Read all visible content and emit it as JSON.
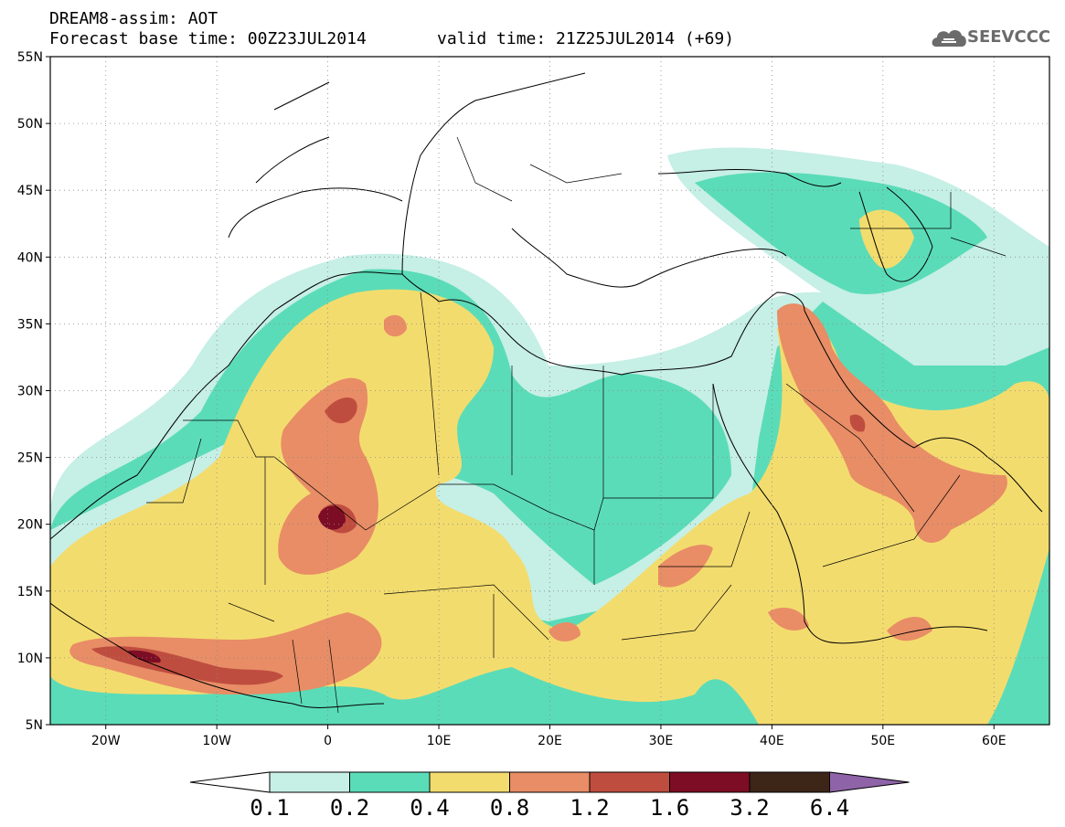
{
  "header": {
    "title_line1": "DREAM8-assim: AOT",
    "title_line2": "Forecast base time: 00Z23JUL2014",
    "valid_time": "valid time: 21Z25JUL2014 (+69)",
    "logo_text": "SEEVCCC"
  },
  "map": {
    "lon_range": [
      -25,
      65
    ],
    "lat_range": [
      5,
      55
    ],
    "lat_ticks": [
      {
        "value": 55,
        "label": "55N"
      },
      {
        "value": 50,
        "label": "50N"
      },
      {
        "value": 45,
        "label": "45N"
      },
      {
        "value": 40,
        "label": "40N"
      },
      {
        "value": 35,
        "label": "35N"
      },
      {
        "value": 30,
        "label": "30N"
      },
      {
        "value": 25,
        "label": "25N"
      },
      {
        "value": 20,
        "label": "20N"
      },
      {
        "value": 15,
        "label": "15N"
      },
      {
        "value": 10,
        "label": "10N"
      },
      {
        "value": 5,
        "label": "5N"
      }
    ],
    "lon_ticks": [
      {
        "value": -20,
        "label": "20W"
      },
      {
        "value": -10,
        "label": "10W"
      },
      {
        "value": 0,
        "label": "0"
      },
      {
        "value": 10,
        "label": "10E"
      },
      {
        "value": 20,
        "label": "20E"
      },
      {
        "value": 30,
        "label": "30E"
      },
      {
        "value": 40,
        "label": "40E"
      },
      {
        "value": 50,
        "label": "50E"
      },
      {
        "value": 60,
        "label": "60E"
      }
    ],
    "grid": "dotted"
  },
  "colorbar": {
    "levels": [
      "0.1",
      "0.2",
      "0.4",
      "0.8",
      "1.2",
      "1.6",
      "3.2",
      "6.4"
    ],
    "colors": [
      "#ffffff",
      "#c6efe6",
      "#5bdcb8",
      "#f3dc6e",
      "#e88d66",
      "#bf4d3f",
      "#7c0d24",
      "#3d2518",
      "#8e63a8"
    ]
  }
}
